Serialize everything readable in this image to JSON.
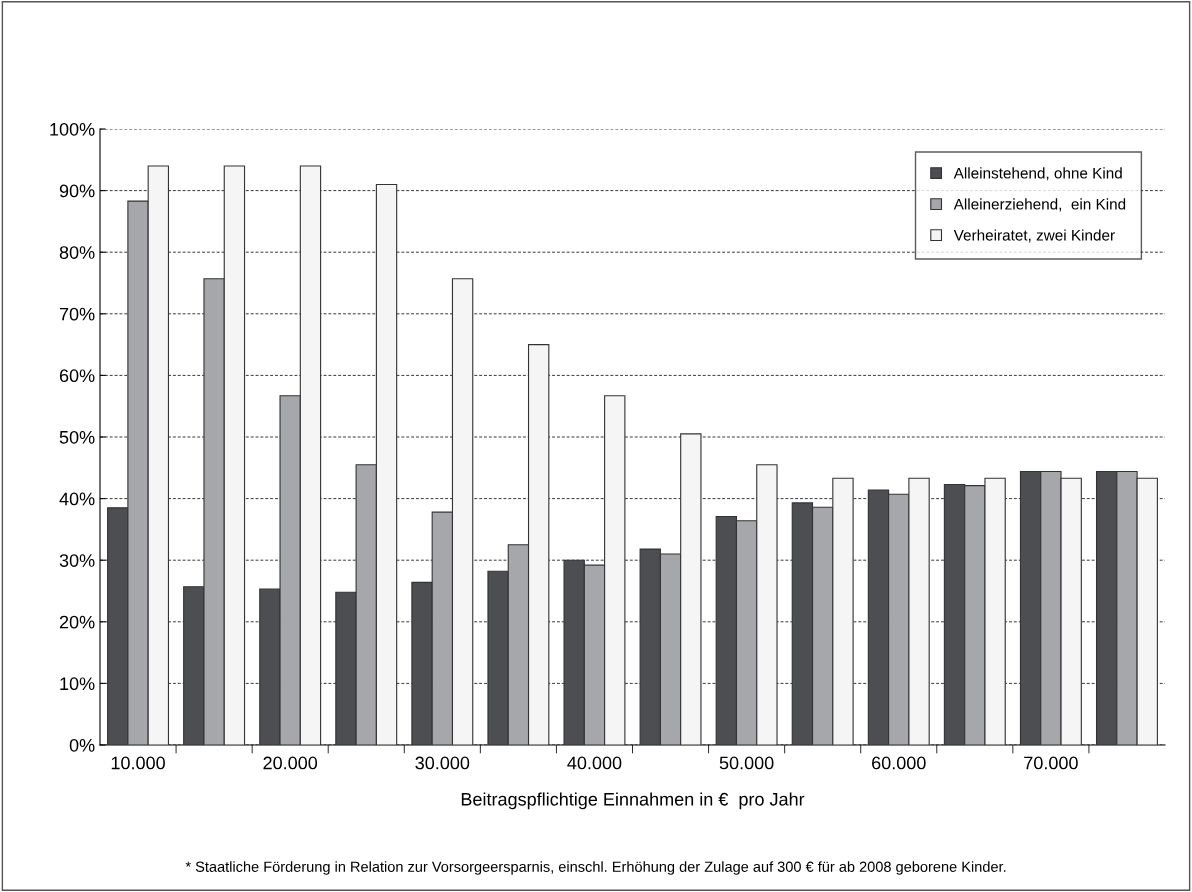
{
  "chart_data": {
    "type": "bar",
    "xlabel": "Beitragspflichtige Einnahmen in €  pro Jahr",
    "categories": [
      "10.000",
      null,
      "20.000",
      null,
      "30.000",
      null,
      "40.000",
      null,
      "50.000",
      null,
      "60.000",
      null,
      "70.000",
      null
    ],
    "series": [
      {
        "name": "Alleinstehend, ohne Kind",
        "color": "#4d4e52",
        "values": [
          38.5,
          25.7,
          25.3,
          24.8,
          26.4,
          28.2,
          30.0,
          31.8,
          37.1,
          39.3,
          41.4,
          42.3,
          44.4,
          44.4
        ]
      },
      {
        "name": "Alleinerziehend,  ein Kind",
        "color": "#a6a7ab",
        "values": [
          88.3,
          75.7,
          56.7,
          45.5,
          37.8,
          32.5,
          29.2,
          31.0,
          36.4,
          38.6,
          40.7,
          42.1,
          44.4,
          44.4
        ]
      },
      {
        "name": "Verheiratet, zwei Kinder",
        "color": "#f5f5f5",
        "values": [
          94,
          94,
          94,
          91,
          75.7,
          65,
          56.7,
          50.5,
          45.5,
          43.3,
          43.3,
          43.3,
          43.3,
          43.3
        ]
      }
    ],
    "ylim": [
      0,
      100
    ],
    "yticks": [
      {
        "value": 0,
        "label": "0%"
      },
      {
        "value": 10,
        "label": "10%"
      },
      {
        "value": 20,
        "label": "20%"
      },
      {
        "value": 30,
        "label": "30%"
      },
      {
        "value": 40,
        "label": "40%"
      },
      {
        "value": 50,
        "label": "50%"
      },
      {
        "value": 60,
        "label": "60%"
      },
      {
        "value": 70,
        "label": "70%"
      },
      {
        "value": 80,
        "label": "80%"
      },
      {
        "value": 90,
        "label": "90%"
      },
      {
        "value": 100,
        "label": "100%"
      }
    ],
    "grid": "y",
    "legend": "top right",
    "annotations": [
      "* Staatliche Förderung in Relation zur Vorsorgeersparnis, einschl. Erhöhung der Zulage auf 300 € für ab 2008 geborene Kinder."
    ]
  }
}
